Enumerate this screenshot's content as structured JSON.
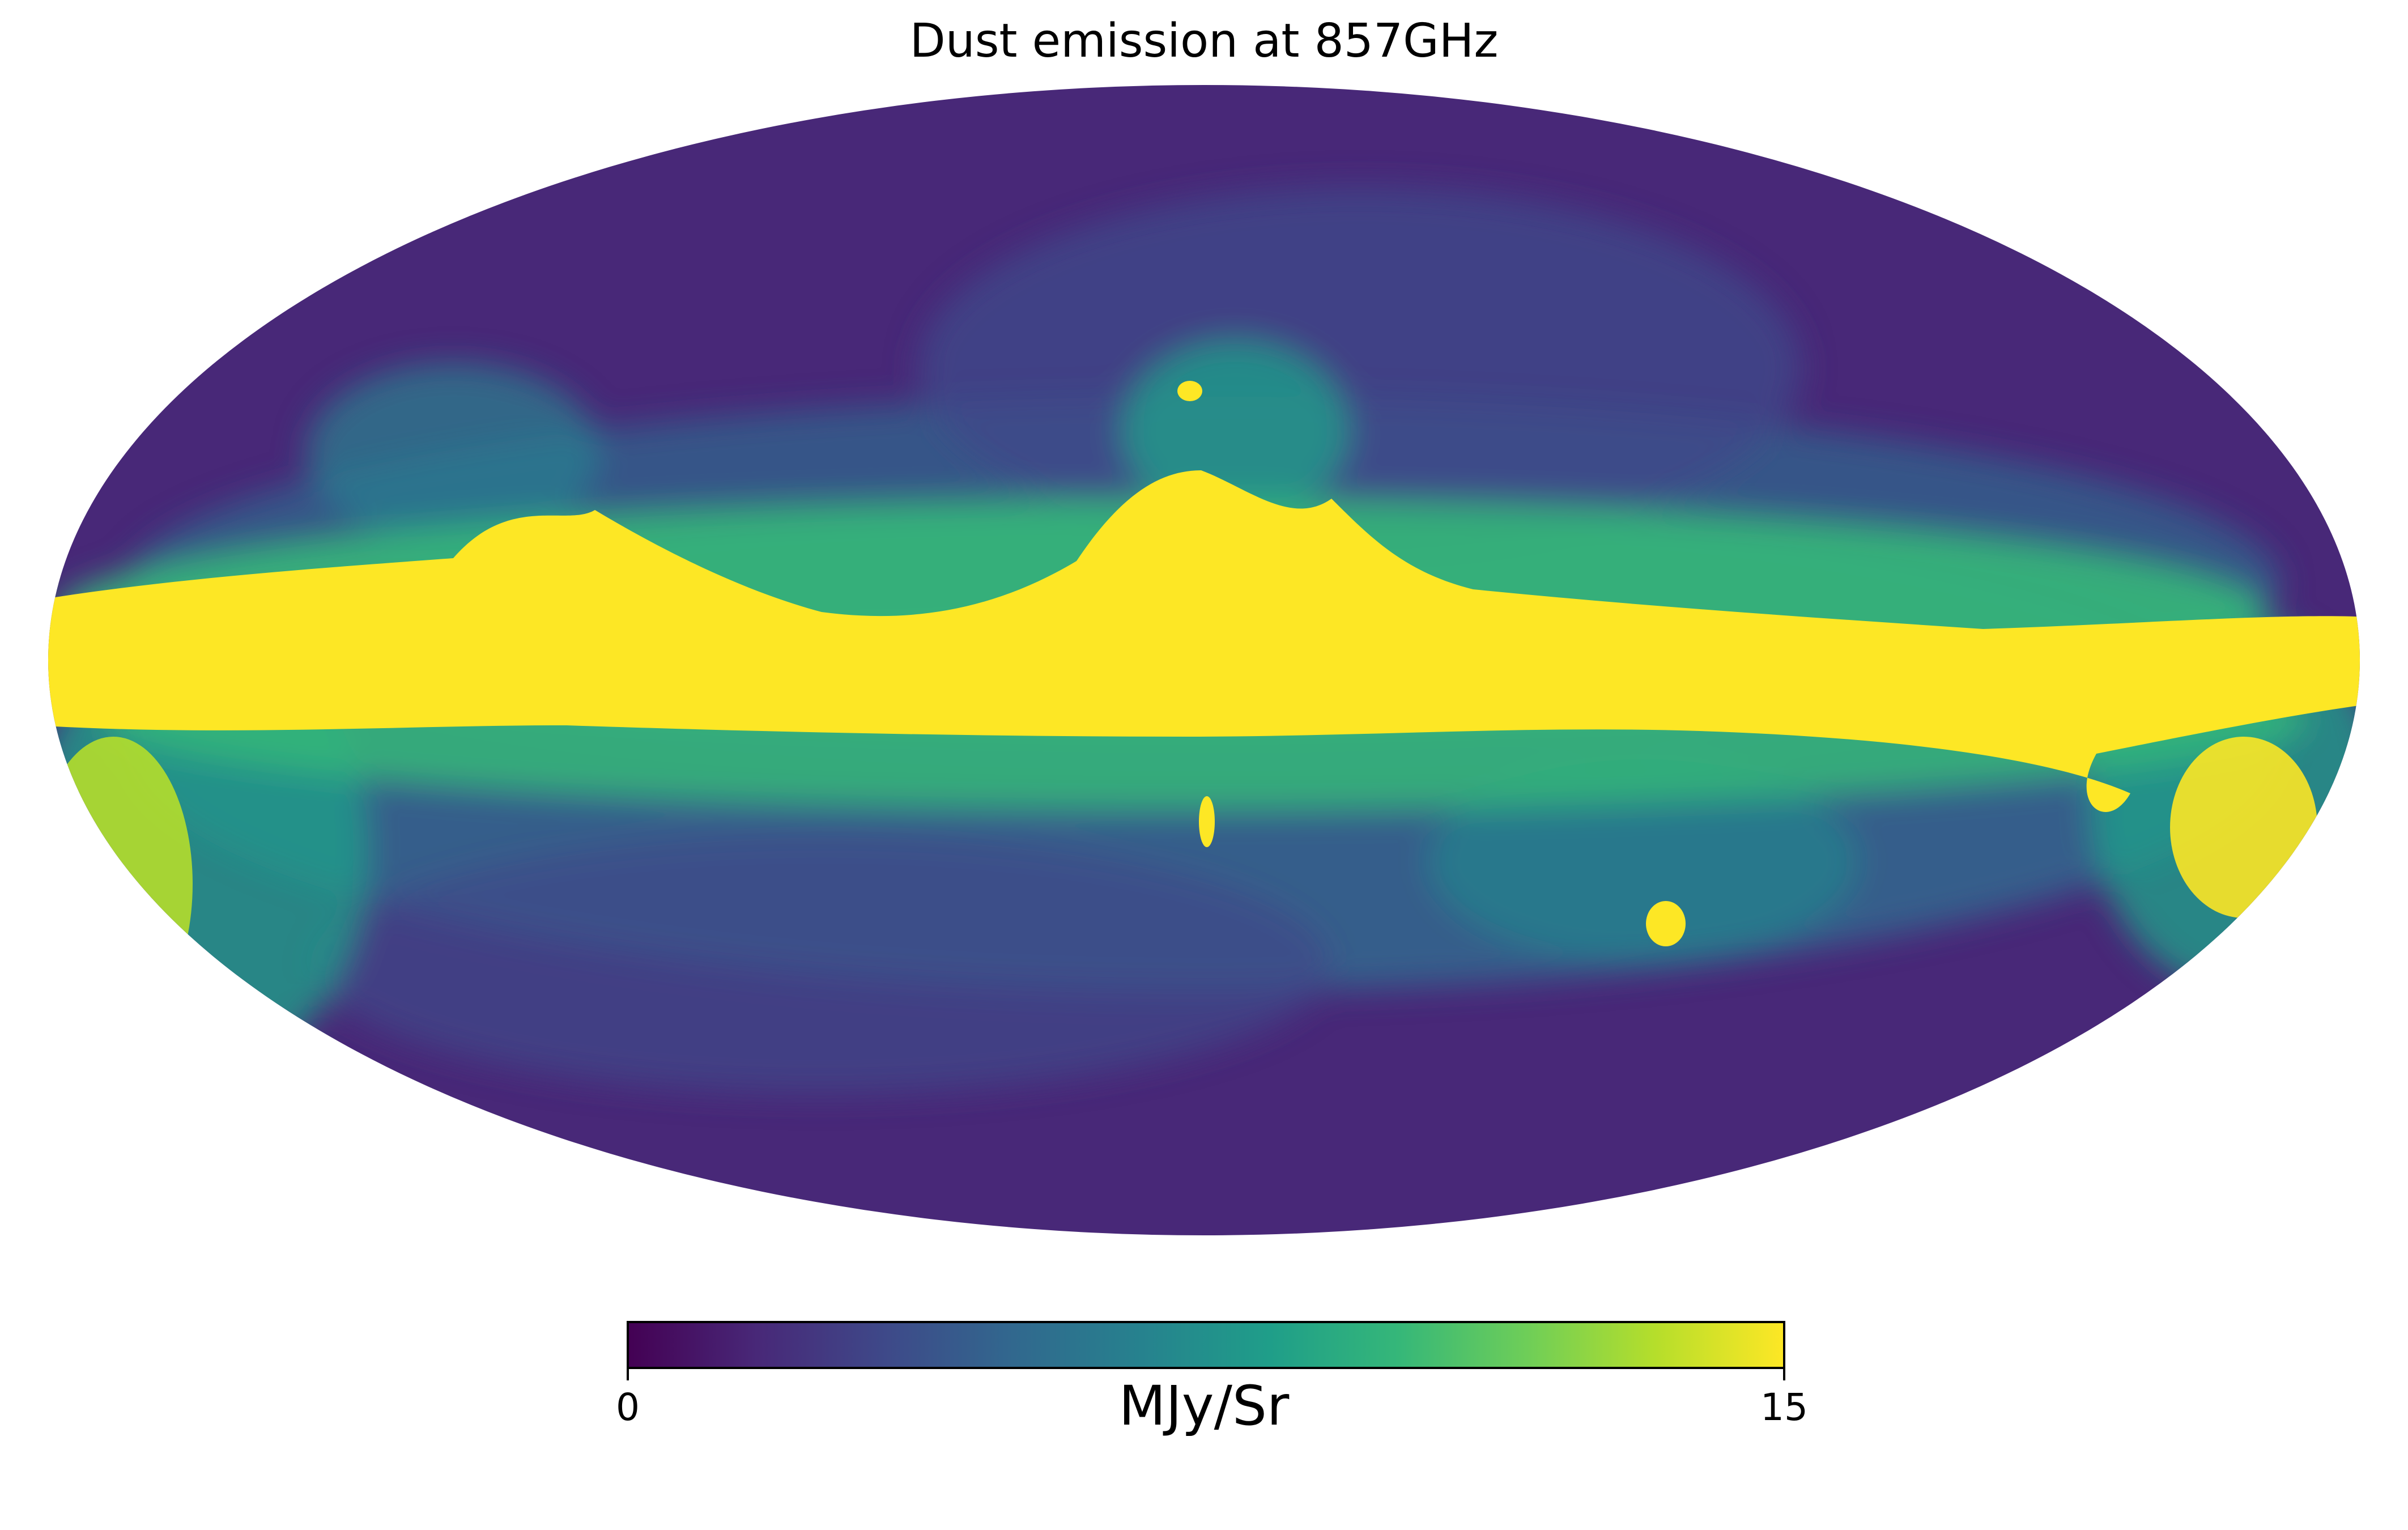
{
  "title": "Dust emission at 857GHz",
  "map": {
    "projection": "mollweide",
    "quantity": "dust emission",
    "frequency": "857GHz",
    "colormap": "viridis",
    "colormap_stops": [
      "#440154",
      "#482878",
      "#3e4989",
      "#31688e",
      "#26828e",
      "#1f9e89",
      "#35b779",
      "#6ece58",
      "#b5de2b",
      "#fde725"
    ],
    "background": "#ffffff"
  },
  "colorbar": {
    "min_label": "0",
    "max_label": "15",
    "unit_label": "MJy/Sr",
    "min": 0,
    "max": 15
  }
}
